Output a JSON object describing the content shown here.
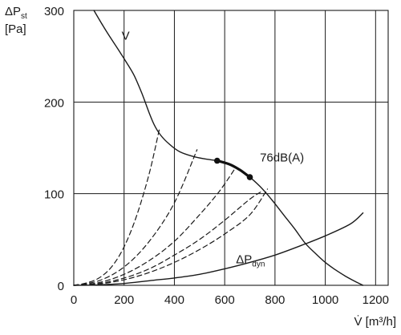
{
  "chart_data": {
    "type": "line",
    "title": "",
    "xlabel": "V̇ [m³/h]",
    "ylabel": {
      "delta": "ΔP",
      "sub": "st",
      "unit": "[Pa]"
    },
    "xlim": [
      0,
      1250
    ],
    "ylim": [
      0,
      300
    ],
    "x_ticks": [
      0,
      200,
      400,
      600,
      800,
      1000,
      1200
    ],
    "y_ticks": [
      0,
      100,
      200,
      300
    ],
    "grid": true,
    "series": [
      {
        "name": "V",
        "style": "solid",
        "color": "#1a1a1a",
        "points": [
          [
            80,
            300
          ],
          [
            130,
            277
          ],
          [
            180,
            256
          ],
          [
            210,
            243
          ],
          [
            240,
            229
          ],
          [
            270,
            210
          ],
          [
            300,
            188
          ],
          [
            320,
            175
          ],
          [
            345,
            164
          ],
          [
            380,
            154
          ],
          [
            420,
            146
          ],
          [
            470,
            141
          ],
          [
            520,
            138
          ],
          [
            570,
            136
          ],
          [
            620,
            132
          ],
          [
            660,
            126
          ],
          [
            700,
            118
          ],
          [
            740,
            108
          ],
          [
            770,
            99
          ],
          [
            800,
            89
          ],
          [
            840,
            75
          ],
          [
            880,
            61
          ],
          [
            920,
            46
          ],
          [
            960,
            35
          ],
          [
            1000,
            25
          ],
          [
            1040,
            17
          ],
          [
            1080,
            10
          ],
          [
            1120,
            4
          ],
          [
            1150,
            0
          ]
        ]
      },
      {
        "name": "ΔP_dyn",
        "style": "solid",
        "color": "#1a1a1a",
        "points": [
          [
            0,
            0
          ],
          [
            100,
            0.5
          ],
          [
            200,
            2
          ],
          [
            300,
            5
          ],
          [
            400,
            8
          ],
          [
            500,
            12
          ],
          [
            600,
            18
          ],
          [
            700,
            25
          ],
          [
            800,
            33
          ],
          [
            900,
            43
          ],
          [
            1000,
            54
          ],
          [
            1100,
            67
          ],
          [
            1150,
            79
          ]
        ]
      },
      {
        "name": "76dB(A)",
        "style": "bold",
        "color": "#111111",
        "points": [
          [
            570,
            136
          ],
          [
            620,
            132
          ],
          [
            660,
            126
          ],
          [
            700,
            118
          ]
        ],
        "markers": [
          [
            570,
            136
          ],
          [
            700,
            118
          ]
        ]
      },
      {
        "name": "",
        "style": "dashed",
        "color": "#1a1a1a",
        "points": [
          [
            0,
            0
          ],
          [
            50,
            2.5
          ],
          [
            100,
            8
          ],
          [
            150,
            20
          ],
          [
            200,
            42
          ],
          [
            250,
            76
          ],
          [
            300,
            122
          ],
          [
            340,
            170
          ]
        ]
      },
      {
        "name": "",
        "style": "dashed",
        "color": "#1a1a1a",
        "points": [
          [
            0,
            0
          ],
          [
            100,
            5
          ],
          [
            200,
            20
          ],
          [
            300,
            48
          ],
          [
            400,
            90
          ],
          [
            490,
            148
          ]
        ]
      },
      {
        "name": "",
        "style": "dashed",
        "color": "#1a1a1a",
        "points": [
          [
            0,
            0
          ],
          [
            100,
            3
          ],
          [
            200,
            12
          ],
          [
            300,
            27
          ],
          [
            400,
            48
          ],
          [
            500,
            77
          ],
          [
            580,
            103
          ],
          [
            640,
            127
          ]
        ]
      },
      {
        "name": "",
        "style": "dashed",
        "color": "#1a1a1a",
        "points": [
          [
            0,
            0
          ],
          [
            100,
            2
          ],
          [
            200,
            8
          ],
          [
            300,
            18
          ],
          [
            400,
            33
          ],
          [
            500,
            50
          ],
          [
            600,
            71
          ],
          [
            700,
            94
          ],
          [
            750,
            103
          ]
        ]
      },
      {
        "name": "",
        "style": "dashed",
        "color": "#1a1a1a",
        "points": [
          [
            0,
            0
          ],
          [
            100,
            1.5
          ],
          [
            200,
            6
          ],
          [
            300,
            14
          ],
          [
            400,
            25
          ],
          [
            500,
            39
          ],
          [
            600,
            56
          ],
          [
            700,
            77
          ],
          [
            770,
            105
          ]
        ]
      }
    ],
    "annotations": [
      {
        "text": "V",
        "x": 190,
        "y": 268
      },
      {
        "text": "76dB(A)",
        "x": 740,
        "y": 135
      },
      {
        "text": "ΔP",
        "sub": "dyn",
        "x": 645,
        "y": 24
      }
    ]
  }
}
